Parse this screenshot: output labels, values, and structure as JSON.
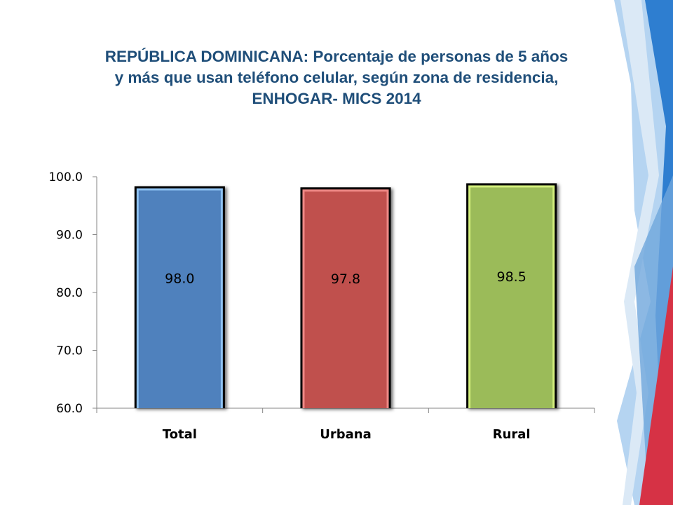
{
  "slide": {
    "title_lines": [
      "REPÚBLICA DOMINICANA: Porcentaje de personas de 5 años",
      "y más que usan teléfono celular, según zona de residencia,",
      "ENHOGAR- MICS 2014"
    ]
  },
  "chart_data": {
    "type": "bar",
    "categories": [
      "Total",
      "Urbana",
      "Rural"
    ],
    "values": [
      98.0,
      97.8,
      98.5
    ],
    "data_labels": [
      "98.0",
      "97.8",
      "98.5"
    ],
    "ytick_labels": [
      "100.0",
      "90.0",
      "80.0",
      "70.0",
      "60.0"
    ],
    "yticks": [
      100,
      90,
      80,
      70,
      60
    ],
    "ylim": [
      60,
      100
    ],
    "xlabel": "",
    "ylabel": "",
    "grid": false,
    "legend": "none",
    "bar_colors": [
      "#4f81bd",
      "#c0504d",
      "#9bbb59"
    ],
    "bar_highlight_colors": [
      "#8ec2f2",
      "#f08a87",
      "#d4ef7d"
    ]
  },
  "theme": {
    "title_color": "#1f4e79",
    "decor_colors": [
      "#2e75c3",
      "#9cc3e8",
      "#d63245"
    ]
  }
}
